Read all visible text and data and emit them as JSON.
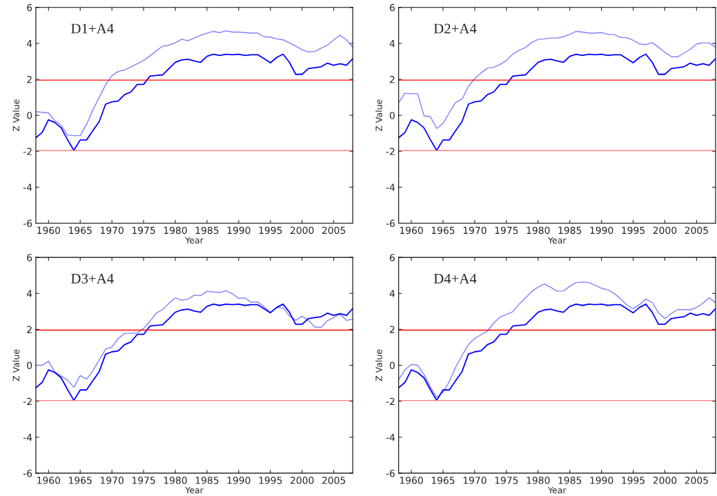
{
  "chart_data": [
    {
      "type": "line",
      "title": "D1+A4",
      "xlabel": "Year",
      "ylabel": "Z Value",
      "xlim": [
        1958,
        2008
      ],
      "ylim": [
        -6,
        6
      ],
      "xticks": [
        1960,
        1965,
        1970,
        1975,
        1980,
        1985,
        1990,
        1995,
        2000,
        2005
      ],
      "yticks": [
        -6,
        -4,
        -2,
        0,
        2,
        4,
        6
      ],
      "grid": false,
      "marker": "none",
      "line_style": "solid",
      "x": [
        1958,
        1959,
        1960,
        1961,
        1962,
        1963,
        1964,
        1965,
        1966,
        1967,
        1968,
        1969,
        1970,
        1971,
        1972,
        1973,
        1974,
        1975,
        1976,
        1977,
        1978,
        1979,
        1980,
        1981,
        1982,
        1983,
        1984,
        1985,
        1986,
        1987,
        1988,
        1989,
        1990,
        1991,
        1992,
        1993,
        1994,
        1995,
        1996,
        1997,
        1998,
        1999,
        2000,
        2001,
        2002,
        2003,
        2004,
        2005,
        2006,
        2007,
        2008
      ],
      "series": [
        {
          "color": "#8080ff",
          "values": [
            0.2,
            0.17,
            0.13,
            -0.3,
            -0.55,
            -1.1,
            -1.13,
            -1.13,
            -0.5,
            0.3,
            1.0,
            1.7,
            2.2,
            2.45,
            2.52,
            2.7,
            2.87,
            3.05,
            3.3,
            3.58,
            3.85,
            3.9,
            4.03,
            4.23,
            4.15,
            4.3,
            4.45,
            4.57,
            4.67,
            4.6,
            4.7,
            4.63,
            4.63,
            4.6,
            4.57,
            4.57,
            4.37,
            4.35,
            4.25,
            4.2,
            4.03,
            3.85,
            3.65,
            3.52,
            3.55,
            3.73,
            3.9,
            4.2,
            4.45,
            4.2,
            3.78
          ]
        },
        {
          "color": "#0000ff",
          "values": [
            -1.25,
            -0.95,
            -0.25,
            -0.4,
            -0.7,
            -1.35,
            -1.95,
            -1.37,
            -1.37,
            -0.85,
            -0.35,
            0.62,
            0.75,
            0.8,
            1.15,
            1.3,
            1.72,
            1.72,
            2.18,
            2.22,
            2.25,
            2.6,
            2.95,
            3.08,
            3.12,
            3.02,
            2.95,
            3.28,
            3.4,
            3.33,
            3.4,
            3.37,
            3.4,
            3.33,
            3.37,
            3.37,
            3.15,
            2.92,
            3.22,
            3.4,
            2.95,
            2.28,
            2.28,
            2.6,
            2.65,
            2.7,
            2.9,
            2.78,
            2.87,
            2.78,
            3.15
          ]
        }
      ],
      "ref_lines": [
        {
          "axis": "y",
          "value": 1.96,
          "color": "#ff0000"
        },
        {
          "axis": "y",
          "value": -1.96,
          "color": "#ff8080"
        }
      ]
    },
    {
      "type": "line",
      "title": "D2+A4",
      "xlabel": "Year",
      "ylabel": "Z Value",
      "xlim": [
        1958,
        2008
      ],
      "ylim": [
        -6,
        6
      ],
      "xticks": [
        1960,
        1965,
        1970,
        1975,
        1980,
        1985,
        1990,
        1995,
        2000,
        2005
      ],
      "yticks": [
        -6,
        -4,
        -2,
        0,
        2,
        4,
        6
      ],
      "grid": false,
      "marker": "none",
      "line_style": "solid",
      "x": [
        1958,
        1959,
        1960,
        1961,
        1962,
        1963,
        1964,
        1965,
        1966,
        1967,
        1968,
        1969,
        1970,
        1971,
        1972,
        1973,
        1974,
        1975,
        1976,
        1977,
        1978,
        1979,
        1980,
        1981,
        1982,
        1983,
        1984,
        1985,
        1986,
        1987,
        1988,
        1989,
        1990,
        1991,
        1992,
        1993,
        1994,
        1995,
        1996,
        1997,
        1998,
        1999,
        2000,
        2001,
        2002,
        2003,
        2004,
        2005,
        2006,
        2007,
        2008
      ],
      "series": [
        {
          "color": "#8080ff",
          "values": [
            0.7,
            1.23,
            1.2,
            1.2,
            -0.02,
            -0.07,
            -0.73,
            -0.45,
            0.15,
            0.72,
            0.9,
            1.6,
            2.05,
            2.35,
            2.63,
            2.67,
            2.83,
            3.05,
            3.4,
            3.62,
            3.77,
            4.05,
            4.22,
            4.25,
            4.3,
            4.3,
            4.37,
            4.5,
            4.67,
            4.63,
            4.57,
            4.57,
            4.6,
            4.5,
            4.5,
            4.33,
            4.32,
            4.17,
            3.97,
            3.93,
            4.05,
            3.78,
            3.5,
            3.27,
            3.25,
            3.45,
            3.67,
            3.97,
            4.03,
            4.03,
            3.78
          ]
        },
        {
          "color": "#0000ff",
          "values": [
            -1.25,
            -0.95,
            -0.25,
            -0.4,
            -0.7,
            -1.35,
            -1.95,
            -1.37,
            -1.37,
            -0.85,
            -0.35,
            0.62,
            0.75,
            0.8,
            1.15,
            1.3,
            1.72,
            1.72,
            2.18,
            2.22,
            2.25,
            2.6,
            2.95,
            3.08,
            3.12,
            3.02,
            2.95,
            3.28,
            3.4,
            3.33,
            3.4,
            3.37,
            3.4,
            3.33,
            3.37,
            3.37,
            3.15,
            2.92,
            3.22,
            3.4,
            2.95,
            2.28,
            2.28,
            2.6,
            2.65,
            2.7,
            2.9,
            2.78,
            2.87,
            2.78,
            3.15
          ]
        }
      ],
      "ref_lines": [
        {
          "axis": "y",
          "value": 1.96,
          "color": "#ff0000"
        },
        {
          "axis": "y",
          "value": -1.96,
          "color": "#ff8080"
        }
      ]
    },
    {
      "type": "line",
      "title": "D3+A4",
      "xlabel": "Year",
      "ylabel": "Z Value",
      "xlim": [
        1958,
        2008
      ],
      "ylim": [
        -6,
        6
      ],
      "xticks": [
        1960,
        1965,
        1970,
        1975,
        1980,
        1985,
        1990,
        1995,
        2000,
        2005
      ],
      "yticks": [
        -6,
        -4,
        -2,
        0,
        2,
        4,
        6
      ],
      "grid": false,
      "marker": "none",
      "line_style": "solid",
      "x": [
        1958,
        1959,
        1960,
        1961,
        1962,
        1963,
        1964,
        1965,
        1966,
        1967,
        1968,
        1969,
        1970,
        1971,
        1972,
        1973,
        1974,
        1975,
        1976,
        1977,
        1978,
        1979,
        1980,
        1981,
        1982,
        1983,
        1984,
        1985,
        1986,
        1987,
        1988,
        1989,
        1990,
        1991,
        1992,
        1993,
        1994,
        1995,
        1996,
        1997,
        1998,
        1999,
        2000,
        2001,
        2002,
        2003,
        2004,
        2005,
        2006,
        2007,
        2008
      ],
      "series": [
        {
          "color": "#8080ff",
          "values": [
            0.0,
            0.0,
            0.23,
            -0.38,
            -0.6,
            -0.82,
            -1.22,
            -0.57,
            -0.77,
            -0.3,
            0.3,
            0.9,
            1.02,
            1.48,
            1.78,
            1.78,
            1.8,
            2.05,
            2.45,
            2.9,
            3.1,
            3.45,
            3.75,
            3.62,
            3.68,
            3.9,
            3.87,
            4.12,
            4.08,
            4.05,
            4.15,
            3.98,
            3.72,
            3.75,
            3.5,
            3.53,
            3.25,
            2.95,
            3.2,
            3.2,
            2.75,
            2.5,
            2.73,
            2.5,
            2.13,
            2.1,
            2.48,
            2.65,
            2.85,
            2.5,
            2.57
          ]
        },
        {
          "color": "#0000ff",
          "values": [
            -1.25,
            -0.95,
            -0.25,
            -0.4,
            -0.7,
            -1.35,
            -1.95,
            -1.37,
            -1.37,
            -0.85,
            -0.35,
            0.62,
            0.75,
            0.8,
            1.15,
            1.3,
            1.72,
            1.72,
            2.18,
            2.22,
            2.25,
            2.6,
            2.95,
            3.08,
            3.12,
            3.02,
            2.95,
            3.28,
            3.4,
            3.33,
            3.4,
            3.37,
            3.4,
            3.33,
            3.37,
            3.37,
            3.15,
            2.92,
            3.22,
            3.4,
            2.95,
            2.28,
            2.28,
            2.6,
            2.65,
            2.7,
            2.9,
            2.78,
            2.87,
            2.78,
            3.15
          ]
        }
      ],
      "ref_lines": [
        {
          "axis": "y",
          "value": 1.96,
          "color": "#ff0000"
        },
        {
          "axis": "y",
          "value": -1.96,
          "color": "#ff8080"
        }
      ]
    },
    {
      "type": "line",
      "title": "D4+A4",
      "xlabel": "Year",
      "ylabel": "Z Value",
      "xlim": [
        1958,
        2008
      ],
      "ylim": [
        -6,
        6
      ],
      "xticks": [
        1960,
        1965,
        1970,
        1975,
        1980,
        1985,
        1990,
        1995,
        2000,
        2005
      ],
      "yticks": [
        -6,
        -4,
        -2,
        0,
        2,
        4,
        6
      ],
      "grid": false,
      "marker": "none",
      "line_style": "solid",
      "x": [
        1958,
        1959,
        1960,
        1961,
        1962,
        1963,
        1964,
        1965,
        1966,
        1967,
        1968,
        1969,
        1970,
        1971,
        1972,
        1973,
        1974,
        1975,
        1976,
        1977,
        1978,
        1979,
        1980,
        1981,
        1982,
        1983,
        1984,
        1985,
        1986,
        1987,
        1988,
        1989,
        1990,
        1991,
        1992,
        1993,
        1994,
        1995,
        1996,
        1997,
        1998,
        1999,
        2000,
        2001,
        2002,
        2003,
        2004,
        2005,
        2006,
        2007,
        2008
      ],
      "series": [
        {
          "color": "#8080ff",
          "values": [
            -0.8,
            -0.25,
            0.05,
            0.0,
            -0.5,
            -1.2,
            -1.78,
            -1.5,
            -0.9,
            -0.1,
            0.55,
            1.15,
            1.5,
            1.7,
            1.9,
            2.35,
            2.68,
            2.83,
            2.98,
            3.4,
            3.75,
            4.1,
            4.35,
            4.52,
            4.33,
            4.12,
            4.13,
            4.4,
            4.6,
            4.63,
            4.6,
            4.45,
            4.28,
            4.2,
            4.0,
            3.7,
            3.35,
            3.15,
            3.38,
            3.68,
            3.5,
            2.92,
            2.6,
            2.88,
            3.1,
            3.1,
            3.08,
            3.22,
            3.45,
            3.75,
            3.48
          ]
        },
        {
          "color": "#0000ff",
          "values": [
            -1.25,
            -0.95,
            -0.25,
            -0.4,
            -0.7,
            -1.35,
            -1.95,
            -1.37,
            -1.37,
            -0.85,
            -0.35,
            0.62,
            0.75,
            0.8,
            1.15,
            1.3,
            1.72,
            1.72,
            2.18,
            2.22,
            2.25,
            2.6,
            2.95,
            3.08,
            3.12,
            3.02,
            2.95,
            3.28,
            3.4,
            3.33,
            3.4,
            3.37,
            3.4,
            3.33,
            3.37,
            3.37,
            3.15,
            2.92,
            3.22,
            3.4,
            2.95,
            2.28,
            2.28,
            2.6,
            2.65,
            2.7,
            2.9,
            2.78,
            2.87,
            2.78,
            3.15
          ]
        }
      ],
      "ref_lines": [
        {
          "axis": "y",
          "value": 1.96,
          "color": "#ff0000"
        },
        {
          "axis": "y",
          "value": -1.96,
          "color": "#ff8080"
        }
      ]
    }
  ]
}
